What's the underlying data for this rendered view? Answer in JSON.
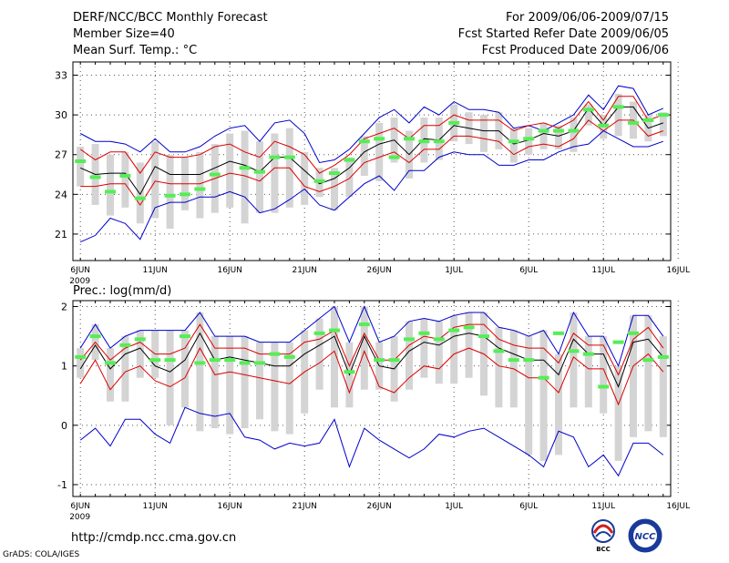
{
  "header": {
    "title": "DERF/NCC/BCC Monthly Forecast",
    "member_size": "Member Size=40",
    "variable": "Mean Surf. Temp.: °C",
    "period": "For 2009/06/06-2009/07/15",
    "start_date": "Fcst Started Refer Date 2009/06/05",
    "produced_date": "Fcst Produced Date 2009/06/06"
  },
  "footer": {
    "url": "http://cmdp.ncc.cma.gov.cn",
    "credit": "GrADS: COLA/IGES"
  },
  "logos": {
    "bcc": "BCC",
    "ncc": "NCC"
  },
  "colors": {
    "envelope": "#0000cc",
    "spread": "#dd0000",
    "mean": "#000000",
    "box": "#d4d4d4",
    "observed": "#55ee55"
  },
  "chart_data": [
    {
      "type": "line",
      "title": "Mean Surf. Temp.: °C",
      "x_days": "day index 0 = 6 Jun 2009",
      "xlim": [
        -0.5,
        39.5
      ],
      "ylim": [
        19,
        34
      ],
      "yticks": [
        21,
        24,
        27,
        30,
        33
      ],
      "ytick_labels": [
        "21",
        "24",
        "27",
        "30",
        "33"
      ],
      "xticks": [
        0,
        5,
        10,
        15,
        20,
        25,
        30,
        35,
        40
      ],
      "xtick_labels": [
        "6JUN",
        "11JUN",
        "16JUN",
        "21JUN",
        "26JUN",
        "1JUL",
        "6JUL",
        "11JUL",
        "16JUL"
      ],
      "year_label": "2009",
      "grid": true,
      "series": [
        {
          "name": "ensemble max",
          "values": [
            28.6,
            28.0,
            28.0,
            27.8,
            27.2,
            28.2,
            27.2,
            27.2,
            27.6,
            28.4,
            29.0,
            29.2,
            28.0,
            29.4,
            29.6,
            28.6,
            26.4,
            26.6,
            27.4,
            28.6,
            29.8,
            30.4,
            29.4,
            30.6,
            30.0,
            31.0,
            30.4,
            30.4,
            30.2,
            29.0,
            29.2,
            28.8,
            29.4,
            30.0,
            31.5,
            30.4,
            32.2,
            32.0,
            30.0,
            30.5
          ]
        },
        {
          "name": "spread upper",
          "values": [
            27.4,
            26.6,
            27.2,
            27.2,
            25.6,
            27.2,
            26.8,
            26.8,
            27.0,
            27.6,
            27.8,
            27.2,
            26.8,
            28.0,
            27.6,
            27.0,
            25.6,
            26.2,
            27.0,
            28.2,
            28.6,
            29.0,
            28.2,
            29.2,
            29.2,
            30.0,
            29.6,
            29.6,
            29.6,
            28.8,
            29.2,
            29.4,
            29.0,
            29.6,
            31.0,
            29.6,
            31.4,
            31.4,
            29.6,
            30.0
          ]
        },
        {
          "name": "ensemble mean",
          "values": [
            26.0,
            25.5,
            25.6,
            25.6,
            24.0,
            26.1,
            25.5,
            25.5,
            25.5,
            26.0,
            26.5,
            26.2,
            25.7,
            26.8,
            26.8,
            25.8,
            24.8,
            25.2,
            26.0,
            27.2,
            27.8,
            28.1,
            27.0,
            28.2,
            28.1,
            29.2,
            29.0,
            28.8,
            28.8,
            27.8,
            28.1,
            28.6,
            28.4,
            28.8,
            30.5,
            29.2,
            30.6,
            30.6,
            29.0,
            29.4
          ]
        },
        {
          "name": "spread lower",
          "values": [
            24.6,
            24.6,
            24.8,
            24.8,
            23.2,
            25.0,
            24.8,
            24.8,
            24.8,
            25.2,
            25.6,
            25.4,
            25.0,
            26.0,
            26.0,
            24.6,
            24.2,
            24.6,
            25.2,
            26.4,
            26.8,
            27.2,
            26.4,
            27.4,
            27.4,
            28.4,
            28.4,
            28.2,
            28.0,
            27.0,
            27.6,
            27.8,
            27.6,
            28.2,
            29.6,
            28.8,
            29.6,
            29.6,
            28.4,
            28.8
          ]
        },
        {
          "name": "ensemble min",
          "values": [
            20.4,
            20.9,
            22.2,
            21.8,
            20.6,
            23.0,
            23.4,
            23.4,
            23.8,
            23.8,
            24.2,
            23.8,
            22.6,
            22.9,
            23.6,
            24.4,
            23.2,
            22.8,
            23.8,
            24.8,
            25.4,
            24.3,
            25.8,
            25.8,
            26.8,
            27.2,
            27.0,
            27.0,
            26.2,
            26.2,
            26.6,
            26.6,
            27.2,
            27.6,
            27.8,
            28.8,
            28.2,
            27.6,
            27.6,
            28.0
          ]
        }
      ],
      "box_low": [
        24.6,
        23.2,
        22.4,
        23.0,
        21.8,
        22.2,
        21.4,
        22.8,
        22.2,
        22.6,
        23.0,
        21.8,
        22.6,
        22.6,
        23.0,
        23.2,
        23.8,
        22.8,
        23.8,
        25.4,
        25.0,
        26.4,
        25.2,
        26.4,
        26.6,
        28.0,
        27.8,
        27.2,
        27.4,
        26.4,
        27.0,
        27.4,
        27.4,
        27.2,
        29.2,
        28.2,
        28.4,
        28.2,
        28.0,
        28.4
      ],
      "box_high": [
        27.6,
        27.8,
        27.0,
        27.2,
        26.4,
        28.0,
        27.0,
        26.8,
        27.2,
        27.8,
        28.6,
        28.8,
        28.0,
        28.6,
        29.0,
        27.2,
        26.0,
        26.0,
        26.8,
        28.4,
        29.4,
        29.8,
        28.8,
        29.8,
        29.8,
        30.8,
        30.2,
        30.0,
        30.2,
        29.0,
        29.0,
        29.4,
        29.2,
        29.8,
        30.8,
        30.0,
        31.6,
        31.0,
        30.0,
        30.2
      ],
      "observed": [
        26.5,
        25.3,
        24.2,
        25.4,
        23.7,
        null,
        23.9,
        24.0,
        24.4,
        25.5,
        null,
        26.0,
        25.7,
        26.8,
        26.8,
        null,
        25.0,
        25.6,
        26.6,
        28.0,
        28.2,
        26.8,
        28.2,
        28.0,
        28.0,
        29.4,
        null,
        null,
        null,
        28.0,
        28.2,
        28.8,
        28.8,
        28.8,
        30.4,
        29.2,
        30.6,
        29.4,
        29.6,
        30.0
      ]
    },
    {
      "type": "line",
      "title": "Prec.: log(mm/d)",
      "x_days": "day index 0 = 6 Jun 2009",
      "xlim": [
        -0.5,
        39.5
      ],
      "ylim": [
        -1.2,
        2.1
      ],
      "yticks": [
        -1,
        0,
        1,
        2
      ],
      "ytick_labels": [
        "-1",
        "0",
        "1",
        "2"
      ],
      "xticks": [
        0,
        5,
        10,
        15,
        20,
        25,
        30,
        35,
        40
      ],
      "xtick_labels": [
        "6JUN",
        "11JUN",
        "16JUN",
        "21JUN",
        "26JUN",
        "1JUL",
        "6JUL",
        "11JUL",
        "16JUL"
      ],
      "year_label": "2009",
      "grid": true,
      "series": [
        {
          "name": "ensemble max",
          "values": [
            1.3,
            1.7,
            1.3,
            1.5,
            1.6,
            1.6,
            1.6,
            1.6,
            1.9,
            1.5,
            1.5,
            1.5,
            1.4,
            1.4,
            1.4,
            1.6,
            1.8,
            2.0,
            1.4,
            2.0,
            1.4,
            1.5,
            1.75,
            1.8,
            1.75,
            1.85,
            1.9,
            1.9,
            1.65,
            1.6,
            1.5,
            1.6,
            1.2,
            1.9,
            1.5,
            1.5,
            1.0,
            1.85,
            1.85,
            1.5
          ]
        },
        {
          "name": "spread upper",
          "values": [
            1.1,
            1.4,
            1.1,
            1.3,
            1.4,
            1.2,
            1.2,
            1.3,
            1.7,
            1.3,
            1.3,
            1.3,
            1.2,
            1.2,
            1.2,
            1.4,
            1.45,
            1.6,
            1.0,
            1.55,
            1.1,
            1.1,
            1.35,
            1.5,
            1.45,
            1.65,
            1.7,
            1.7,
            1.45,
            1.35,
            1.3,
            1.3,
            1.05,
            1.55,
            1.35,
            1.35,
            0.85,
            1.45,
            1.65,
            1.3
          ]
        },
        {
          "name": "ensemble mean",
          "values": [
            0.95,
            1.35,
            0.95,
            1.2,
            1.3,
            1.0,
            0.9,
            1.1,
            1.55,
            1.1,
            1.15,
            1.1,
            1.05,
            1.0,
            1.0,
            1.2,
            1.35,
            1.5,
            0.85,
            1.5,
            1.0,
            0.95,
            1.25,
            1.4,
            1.35,
            1.5,
            1.55,
            1.5,
            1.3,
            1.2,
            1.1,
            1.1,
            0.85,
            1.45,
            1.2,
            1.2,
            0.65,
            1.4,
            1.45,
            1.15
          ]
        },
        {
          "name": "spread lower",
          "values": [
            0.7,
            1.1,
            0.6,
            0.9,
            1.0,
            0.75,
            0.65,
            0.8,
            1.3,
            0.85,
            0.9,
            0.85,
            0.8,
            0.75,
            0.7,
            0.9,
            1.05,
            1.25,
            0.55,
            1.25,
            0.65,
            0.55,
            0.8,
            1.0,
            0.95,
            1.2,
            1.3,
            1.2,
            1.0,
            0.95,
            0.8,
            0.8,
            0.55,
            1.15,
            0.95,
            0.95,
            0.35,
            1.0,
            1.2,
            0.9
          ]
        },
        {
          "name": "ensemble min",
          "values": [
            -0.25,
            -0.05,
            -0.35,
            0.1,
            0.1,
            -0.15,
            -0.3,
            0.3,
            0.2,
            0.15,
            0.2,
            -0.2,
            -0.25,
            -0.4,
            -0.3,
            -0.35,
            -0.3,
            0.1,
            -0.7,
            -0.05,
            -0.25,
            -0.4,
            -0.55,
            -0.4,
            -0.15,
            -0.2,
            -0.1,
            -0.05,
            -0.2,
            -0.35,
            -0.5,
            -0.7,
            -0.1,
            -0.2,
            -0.7,
            -0.5,
            -0.85,
            -0.3,
            -0.3,
            -0.5
          ]
        }
      ],
      "box_low": [
        0.8,
        1.1,
        0.4,
        0.4,
        0.8,
        0.8,
        0.0,
        0.3,
        -0.1,
        -0.05,
        -0.15,
        -0.05,
        0.1,
        -0.1,
        -0.15,
        0.2,
        0.6,
        0.3,
        0.3,
        0.6,
        0.6,
        0.4,
        0.6,
        0.8,
        0.7,
        0.7,
        0.8,
        0.5,
        0.3,
        0.3,
        -0.5,
        -0.6,
        -0.5,
        0.3,
        0.3,
        0.2,
        -0.6,
        -0.2,
        -0.1,
        -0.2
      ],
      "box_high": [
        1.3,
        1.7,
        1.3,
        1.5,
        1.6,
        1.6,
        1.6,
        1.6,
        1.9,
        1.5,
        1.5,
        1.5,
        1.4,
        1.4,
        1.4,
        1.6,
        1.8,
        2.0,
        1.4,
        2.0,
        1.4,
        1.5,
        1.75,
        1.8,
        1.75,
        1.85,
        1.9,
        1.9,
        1.65,
        1.6,
        1.5,
        1.6,
        1.2,
        1.9,
        1.5,
        1.5,
        1.0,
        1.85,
        1.85,
        1.5
      ],
      "observed": [
        1.15,
        1.5,
        1.05,
        1.35,
        1.45,
        1.1,
        1.1,
        1.5,
        1.05,
        1.1,
        1.1,
        1.05,
        1.05,
        1.2,
        1.15,
        null,
        1.55,
        1.6,
        0.9,
        1.7,
        1.1,
        1.1,
        1.45,
        1.55,
        1.45,
        1.6,
        1.65,
        1.5,
        1.25,
        1.1,
        1.1,
        0.8,
        1.55,
        1.25,
        1.2,
        0.65,
        1.4,
        1.55,
        1.1,
        1.15
      ]
    }
  ]
}
